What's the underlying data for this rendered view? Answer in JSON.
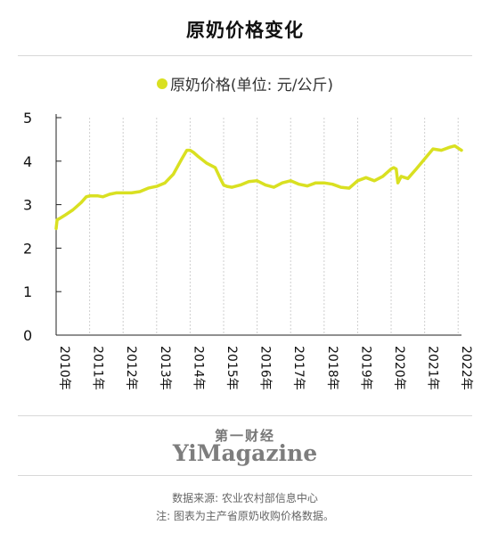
{
  "title": "原奶价格变化",
  "legend_label": "原奶价格(单位: 元/公斤)",
  "series_color": "#d9e021",
  "brand_cn": "第一财经",
  "brand_en": "YiMagazine",
  "source": "数据来源: 农业农村部信息中心",
  "note": "注: 图表为主产省原奶收购价格数据。",
  "chart_data": {
    "type": "line",
    "title": "原奶价格变化",
    "xlabel": "",
    "ylabel": "",
    "ylim": [
      0,
      5
    ],
    "yticks": [
      "0",
      "1",
      "2",
      "3",
      "4",
      "5"
    ],
    "xticks": [
      "2010年",
      "2011年",
      "2012年",
      "2013年",
      "2014年",
      "2015年",
      "2016年",
      "2017年",
      "2018年",
      "2019年",
      "2020年",
      "2021年",
      "2022年"
    ],
    "grid": "vertical",
    "legend": "top-center",
    "series": [
      {
        "name": "原奶价格(单位: 元/公斤)",
        "x": [
          2010.0,
          2010.03,
          2010.1,
          2010.25,
          2010.5,
          2010.75,
          2010.9,
          2011.0,
          2011.25,
          2011.4,
          2011.6,
          2011.8,
          2012.0,
          2012.25,
          2012.5,
          2012.75,
          2013.0,
          2013.25,
          2013.5,
          2013.75,
          2013.9,
          2014.0,
          2014.1,
          2014.25,
          2014.5,
          2014.75,
          2014.9,
          2015.0,
          2015.1,
          2015.25,
          2015.5,
          2015.75,
          2016.0,
          2016.25,
          2016.5,
          2016.75,
          2017.0,
          2017.25,
          2017.5,
          2017.75,
          2018.0,
          2018.25,
          2018.5,
          2018.75,
          2019.0,
          2019.25,
          2019.5,
          2019.75,
          2020.0,
          2020.08,
          2020.15,
          2020.2,
          2020.3,
          2020.5,
          2020.75,
          2021.0,
          2021.25,
          2021.5,
          2021.75,
          2021.9,
          2022.0,
          2022.1
        ],
        "values": [
          2.45,
          2.65,
          2.68,
          2.75,
          2.88,
          3.05,
          3.18,
          3.2,
          3.2,
          3.18,
          3.24,
          3.27,
          3.27,
          3.27,
          3.3,
          3.38,
          3.42,
          3.5,
          3.7,
          4.05,
          4.25,
          4.25,
          4.2,
          4.1,
          3.95,
          3.85,
          3.6,
          3.45,
          3.42,
          3.4,
          3.45,
          3.53,
          3.55,
          3.45,
          3.4,
          3.5,
          3.55,
          3.47,
          3.43,
          3.5,
          3.5,
          3.47,
          3.4,
          3.38,
          3.55,
          3.62,
          3.55,
          3.65,
          3.82,
          3.85,
          3.82,
          3.5,
          3.65,
          3.6,
          3.82,
          4.05,
          4.28,
          4.25,
          4.32,
          4.35,
          4.3,
          4.25
        ]
      }
    ]
  }
}
